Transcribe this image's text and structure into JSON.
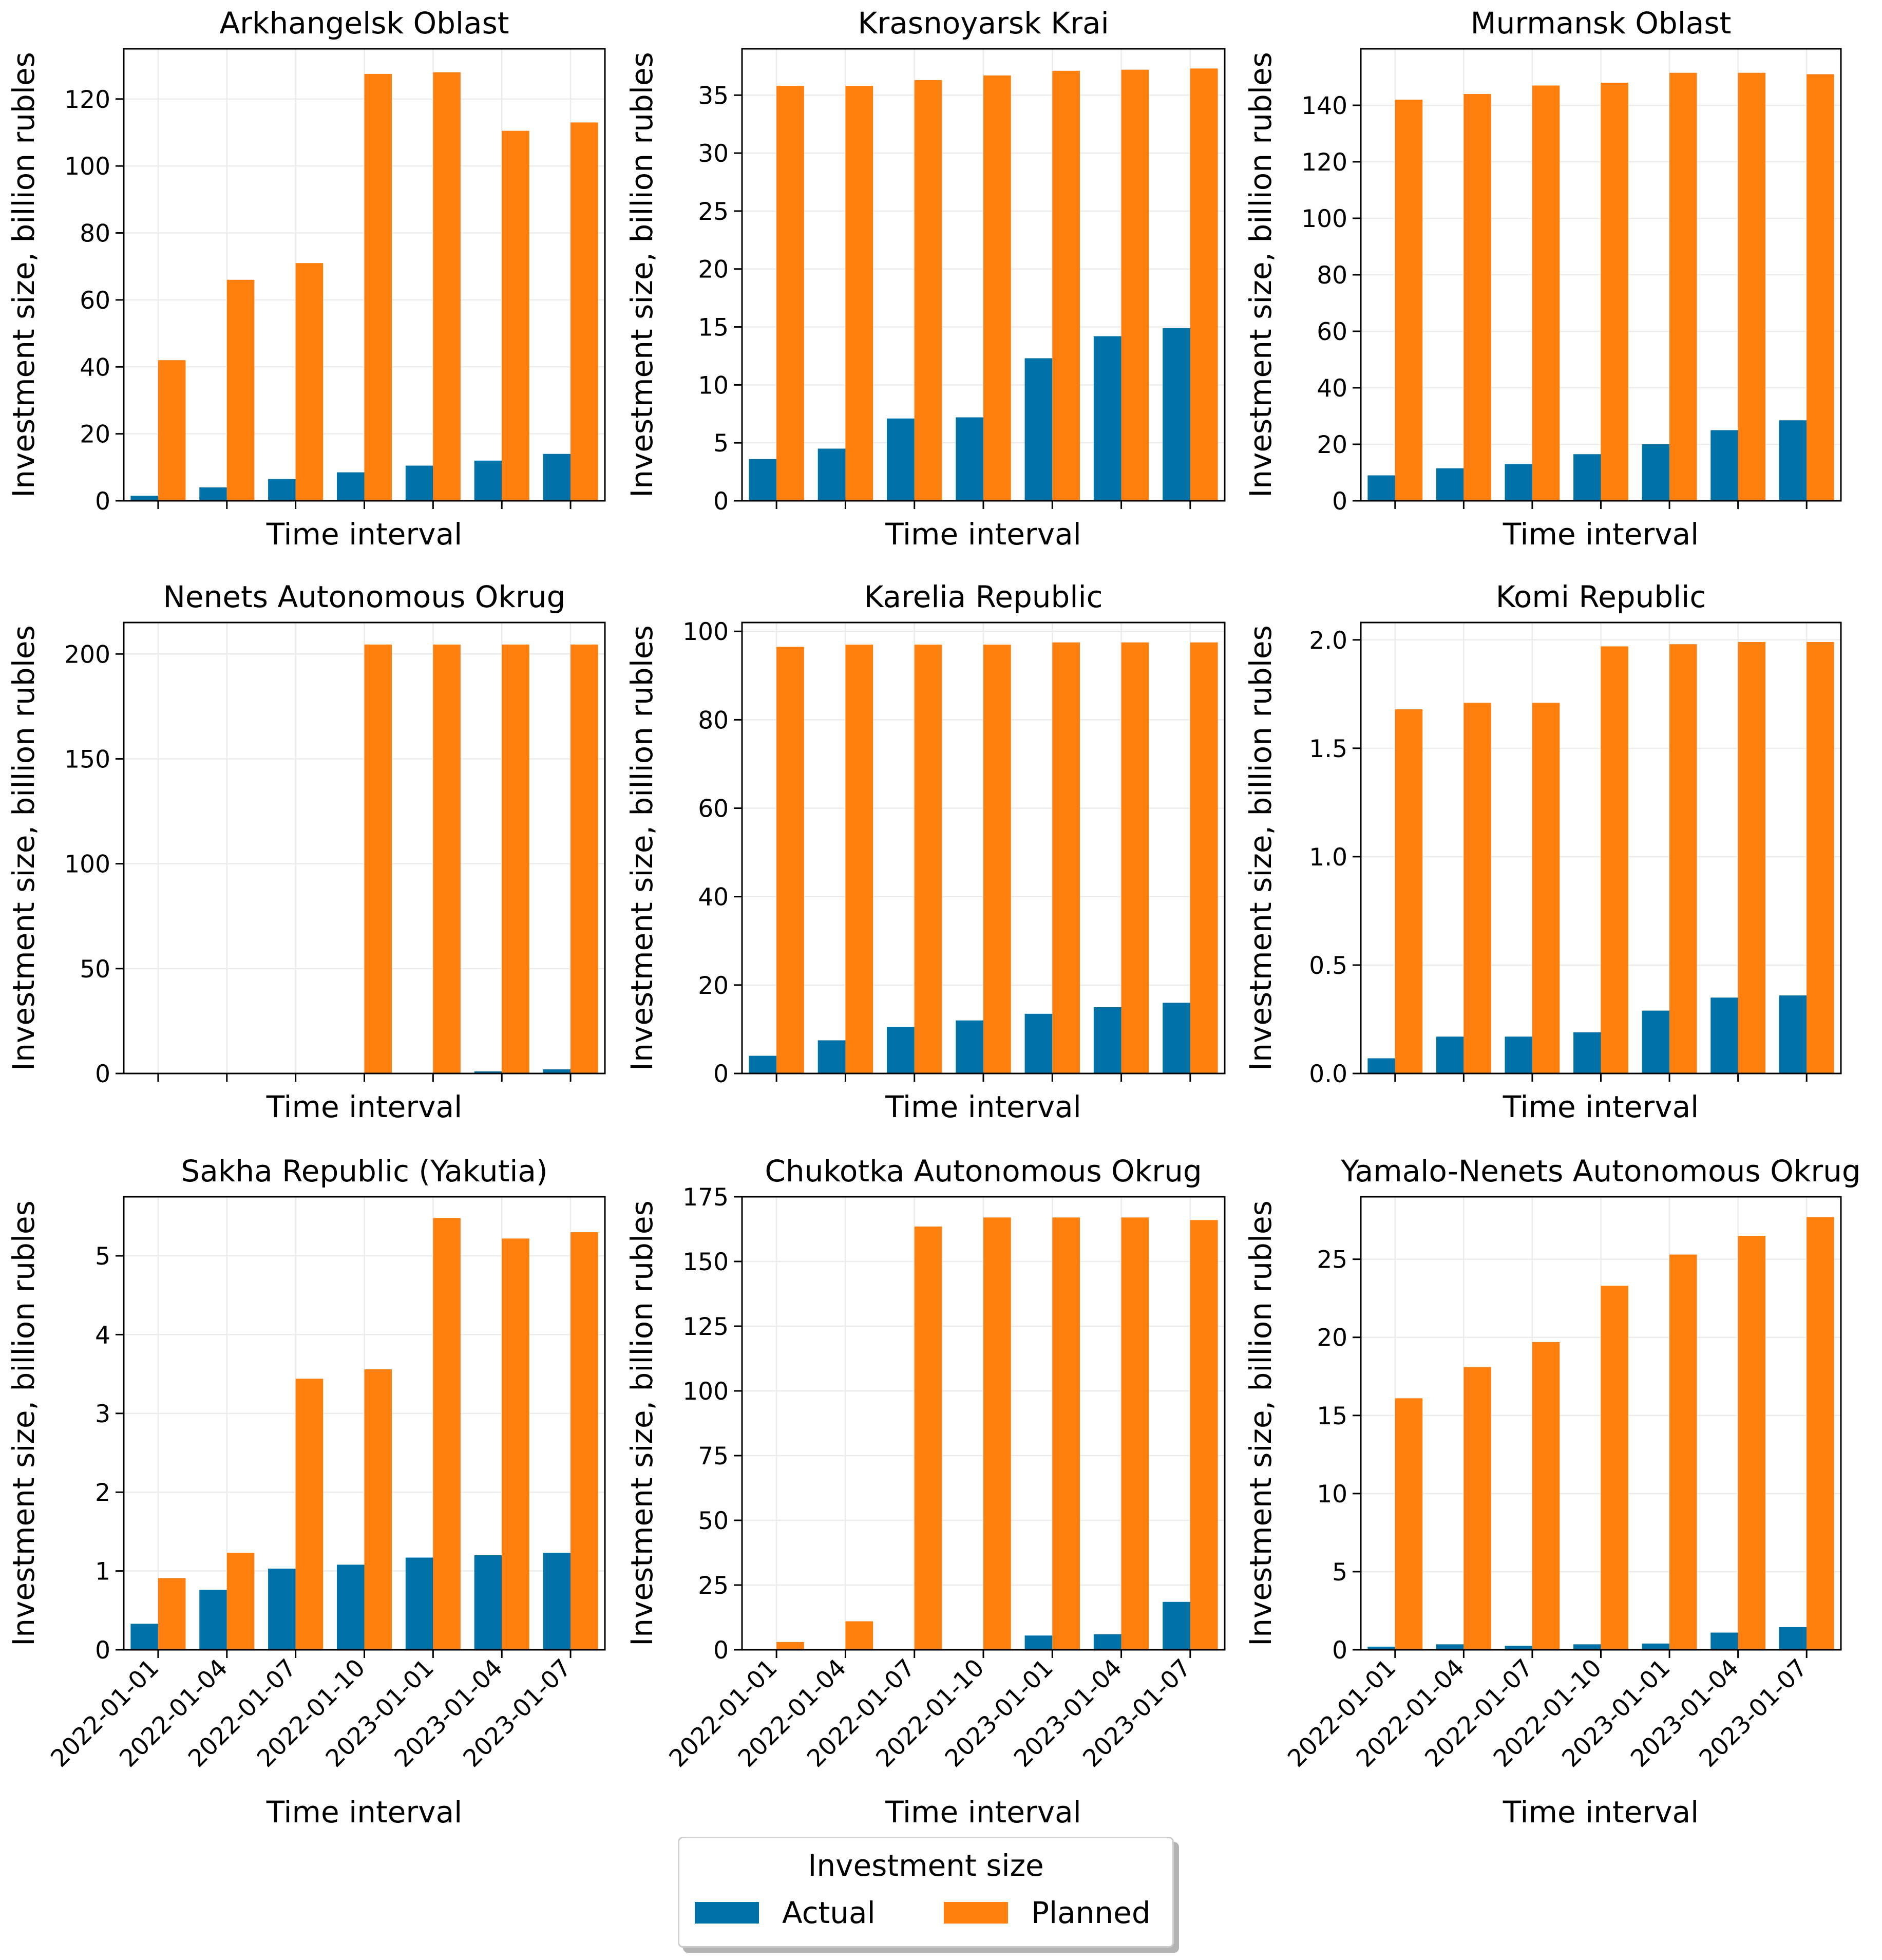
{
  "chart_data": {
    "type": "bar",
    "layout": "3x3 small multiples",
    "categories": [
      "2022-01-01",
      "2022-01-04",
      "2022-01-07",
      "2022-01-10",
      "2023-01-01",
      "2023-01-04",
      "2023-01-07"
    ],
    "xlabel": "Time interval",
    "ylabel": "Investment size, billion rubles",
    "grid": true,
    "colors": {
      "Actual": "#0072a8",
      "Planned": "#ff7f0e"
    },
    "legend": {
      "title": "Investment size",
      "placement": "bottom-center",
      "entries": [
        "Actual",
        "Planned"
      ]
    },
    "panels": [
      {
        "title": "Arkhangelsk Oblast",
        "ylim": [
          0,
          135
        ],
        "yticks": [
          0,
          20,
          40,
          60,
          80,
          100,
          120
        ],
        "tick_labels": [
          "0",
          "20",
          "40",
          "60",
          "80",
          "100",
          "120"
        ],
        "series": [
          {
            "name": "Actual",
            "values": [
              1.5,
              4,
              6.5,
              8.5,
              10.5,
              12,
              14
            ]
          },
          {
            "name": "Planned",
            "values": [
              42,
              66,
              71,
              127.5,
              128,
              110.5,
              113
            ]
          }
        ]
      },
      {
        "title": "Krasnoyarsk Krai",
        "ylim": [
          0,
          39
        ],
        "yticks": [
          0,
          5,
          10,
          15,
          20,
          25,
          30,
          35
        ],
        "tick_labels": [
          "0",
          "5",
          "10",
          "15",
          "20",
          "25",
          "30",
          "35"
        ],
        "series": [
          {
            "name": "Actual",
            "values": [
              3.6,
              4.5,
              7.1,
              7.2,
              12.3,
              14.2,
              14.9
            ]
          },
          {
            "name": "Planned",
            "values": [
              35.8,
              35.8,
              36.3,
              36.7,
              37.1,
              37.2,
              37.3
            ]
          }
        ]
      },
      {
        "title": "Murmansk Oblast",
        "ylim": [
          0,
          160
        ],
        "yticks": [
          0,
          20,
          40,
          60,
          80,
          100,
          120,
          140
        ],
        "tick_labels": [
          "0",
          "20",
          "40",
          "60",
          "80",
          "100",
          "120",
          "140"
        ],
        "series": [
          {
            "name": "Actual",
            "values": [
              9,
              11.5,
              13,
              16.5,
              20,
              25,
              28.5
            ]
          },
          {
            "name": "Planned",
            "values": [
              142,
              144,
              147,
              148,
              151.5,
              151.5,
              151
            ]
          }
        ]
      },
      {
        "title": "Nenets Autonomous Okrug",
        "ylim": [
          0,
          215
        ],
        "yticks": [
          0,
          50,
          100,
          150,
          200
        ],
        "tick_labels": [
          "0",
          "50",
          "100",
          "150",
          "200"
        ],
        "series": [
          {
            "name": "Actual",
            "values": [
              0,
              0,
              0,
              0,
              0,
              1,
              2
            ]
          },
          {
            "name": "Planned",
            "values": [
              0,
              0,
              0,
              204.5,
              204.5,
              204.5,
              204.5
            ]
          }
        ]
      },
      {
        "title": "Karelia Republic",
        "ylim": [
          0,
          102
        ],
        "yticks": [
          0,
          20,
          40,
          60,
          80,
          100
        ],
        "tick_labels": [
          "0",
          "20",
          "40",
          "60",
          "80",
          "100"
        ],
        "series": [
          {
            "name": "Actual",
            "values": [
              4,
              7.5,
              10.5,
              12,
              13.5,
              15,
              16
            ]
          },
          {
            "name": "Planned",
            "values": [
              96.5,
              97,
              97,
              97,
              97.5,
              97.5,
              97.5
            ]
          }
        ]
      },
      {
        "title": "Komi Republic",
        "ylim": [
          0,
          2.08
        ],
        "yticks": [
          0,
          0.5,
          1,
          1.5,
          2
        ],
        "tick_labels": [
          "0.0",
          "0.5",
          "1.0",
          "1.5",
          "2.0"
        ],
        "series": [
          {
            "name": "Actual",
            "values": [
              0.07,
              0.17,
              0.17,
              0.19,
              0.29,
              0.35,
              0.36
            ]
          },
          {
            "name": "Planned",
            "values": [
              1.68,
              1.71,
              1.71,
              1.97,
              1.98,
              1.99,
              1.99
            ]
          }
        ]
      },
      {
        "title": "Sakha Republic (Yakutia)",
        "ylim": [
          0,
          5.75
        ],
        "yticks": [
          0,
          1,
          2,
          3,
          4,
          5
        ],
        "tick_labels": [
          "0",
          "1",
          "2",
          "3",
          "4",
          "5"
        ],
        "series": [
          {
            "name": "Actual",
            "values": [
              0.33,
              0.76,
              1.03,
              1.08,
              1.17,
              1.2,
              1.23
            ]
          },
          {
            "name": "Planned",
            "values": [
              0.91,
              1.23,
              3.44,
              3.56,
              5.48,
              5.22,
              5.3
            ]
          }
        ]
      },
      {
        "title": "Chukotka Autonomous Okrug",
        "ylim": [
          0,
          175
        ],
        "yticks": [
          0,
          25,
          50,
          75,
          100,
          125,
          150,
          175
        ],
        "tick_labels": [
          "0",
          "25",
          "50",
          "75",
          "100",
          "125",
          "150",
          "175"
        ],
        "series": [
          {
            "name": "Actual",
            "values": [
              0,
              0,
              0,
              0,
              5.5,
              6,
              18.5
            ]
          },
          {
            "name": "Planned",
            "values": [
              3,
              11,
              163.5,
              167,
              167,
              167,
              166
            ]
          }
        ]
      },
      {
        "title": "Yamalo-Nenets Autonomous Okrug",
        "ylim": [
          0,
          29
        ],
        "yticks": [
          0,
          5,
          10,
          15,
          20,
          25
        ],
        "tick_labels": [
          "0",
          "5",
          "10",
          "15",
          "20",
          "25"
        ],
        "series": [
          {
            "name": "Actual",
            "values": [
              0.2,
              0.35,
              0.25,
              0.35,
              0.4,
              1.1,
              1.45
            ]
          },
          {
            "name": "Planned",
            "values": [
              16.1,
              18.1,
              19.7,
              23.3,
              25.3,
              26.5,
              27.7
            ]
          }
        ]
      }
    ]
  }
}
